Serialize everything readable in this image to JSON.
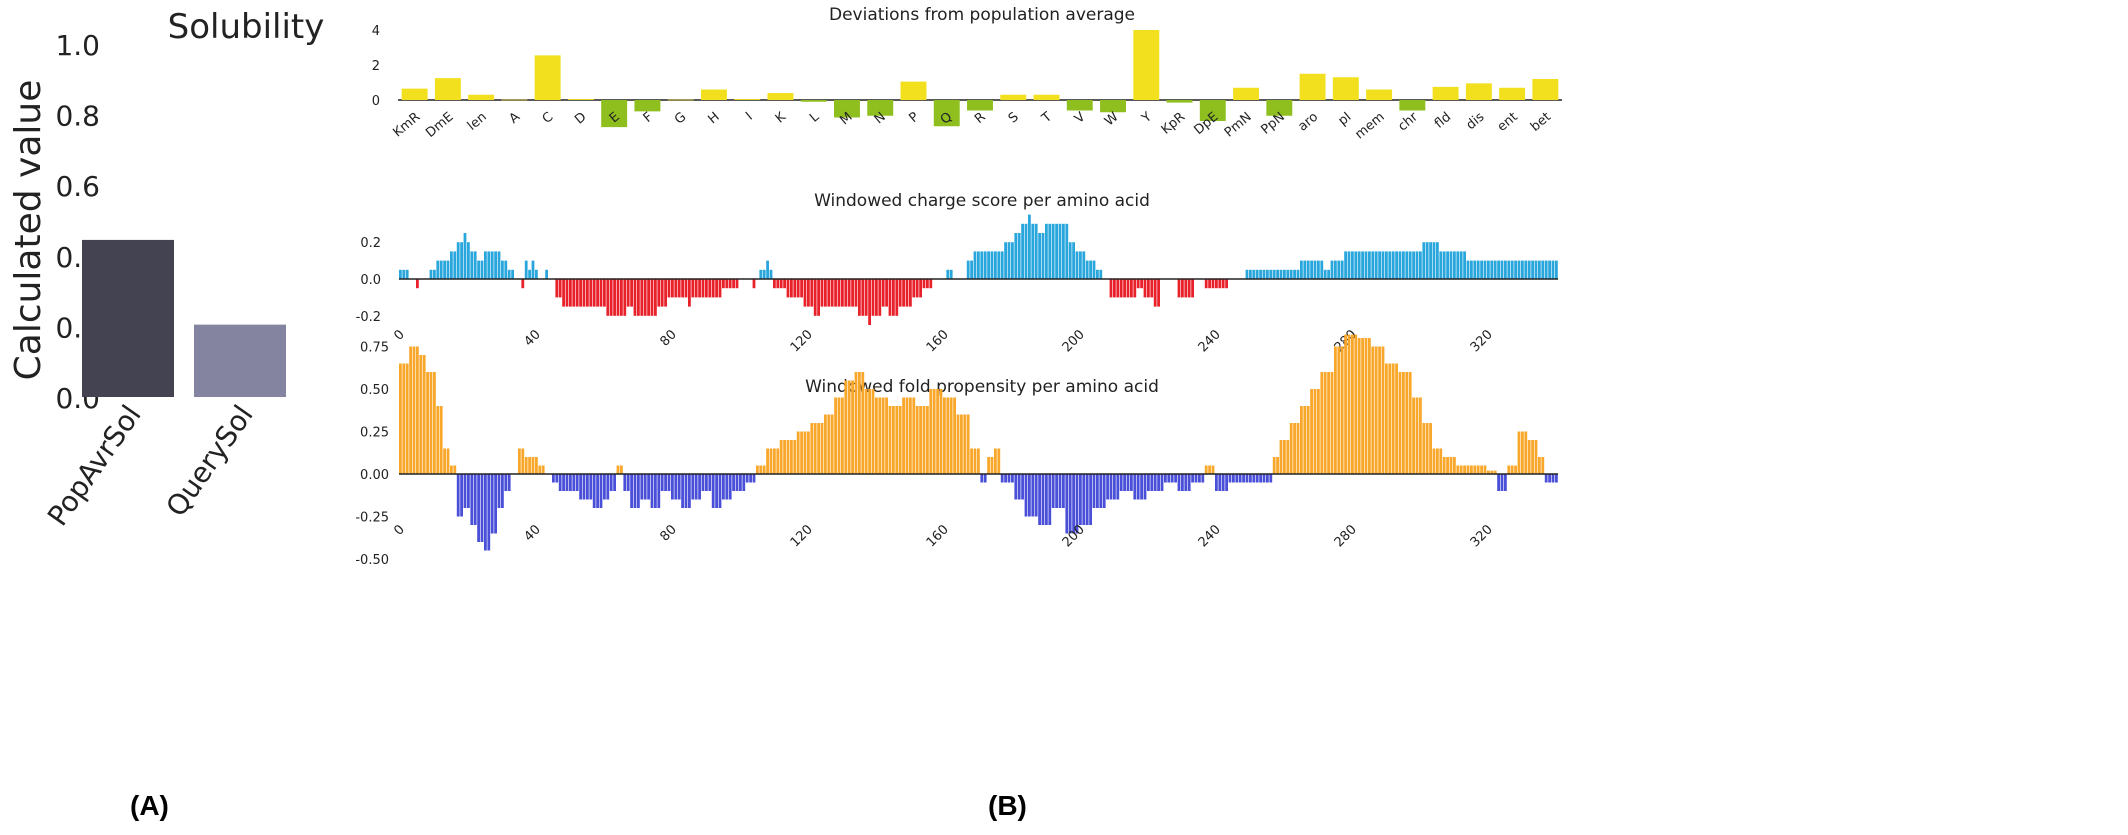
{
  "panel_labels": {
    "a": "(A)",
    "b": "(B)"
  },
  "chart_data": [
    {
      "type": "bar",
      "title": "Solubility",
      "ylabel": "Calculated value",
      "categories": [
        "PopAvrSol",
        "QuerySol"
      ],
      "values": [
        0.445,
        0.205
      ],
      "colors": [
        "#434351",
        "#8484a0"
      ],
      "ylim": [
        0,
        1.05
      ],
      "yticks": [
        "0.0",
        "0.2",
        "0.4",
        "0.6",
        "0.8",
        "1.0"
      ]
    },
    {
      "type": "bar",
      "title": "Deviations from population average",
      "categories": [
        "KmR",
        "DmE",
        "len",
        "A",
        "C",
        "D",
        "E",
        "F",
        "G",
        "H",
        "I",
        "K",
        "L",
        "M",
        "N",
        "P",
        "Q",
        "R",
        "S",
        "T",
        "V",
        "W",
        "Y",
        "KpR",
        "DpE",
        "PmN",
        "PpN",
        "aro",
        "pI",
        "mem",
        "chr",
        "fld",
        "dis",
        "ent",
        "bet"
      ],
      "values": [
        0.65,
        1.25,
        0.3,
        0.02,
        2.55,
        0.05,
        -1.55,
        -0.65,
        0.02,
        0.6,
        0.05,
        0.4,
        -0.1,
        -1.0,
        -0.9,
        1.05,
        -1.5,
        -0.6,
        0.3,
        0.3,
        -0.6,
        -0.7,
        4.0,
        -0.15,
        -1.2,
        0.7,
        -0.9,
        1.5,
        1.3,
        0.6,
        -0.6,
        0.75,
        0.95,
        0.7,
        1.2
      ],
      "pos_color": "#f2e01e",
      "neg_color": "#8fbf1f",
      "ylim": [
        -1.6,
        4.2
      ],
      "yticks": [
        "0",
        "2",
        "4"
      ]
    },
    {
      "type": "bar",
      "title": "Windowed charge score per amino acid",
      "xlim": [
        0,
        340
      ],
      "xticks": [
        "0",
        "40",
        "80",
        "120",
        "160",
        "200",
        "240",
        "280",
        "320"
      ],
      "yticks": [
        "0.2",
        "0.0",
        "-0.2"
      ],
      "ylim": [
        -0.25,
        0.34
      ],
      "pos_color": "#29a6dc",
      "neg_color": "#e8202a",
      "segments": [
        [
          0,
          2,
          0.05
        ],
        [
          3,
          4,
          0.0
        ],
        [
          5,
          5,
          -0.05
        ],
        [
          6,
          8,
          0.0
        ],
        [
          9,
          10,
          0.05
        ],
        [
          11,
          14,
          0.1
        ],
        [
          15,
          16,
          0.15
        ],
        [
          17,
          18,
          0.2
        ],
        [
          19,
          19,
          0.25
        ],
        [
          20,
          20,
          0.2
        ],
        [
          21,
          22,
          0.15
        ],
        [
          23,
          24,
          0.1
        ],
        [
          25,
          26,
          0.15
        ],
        [
          27,
          29,
          0.15
        ],
        [
          30,
          31,
          0.1
        ],
        [
          32,
          33,
          0.05
        ],
        [
          34,
          35,
          0.0
        ],
        [
          36,
          36,
          -0.05
        ],
        [
          37,
          37,
          0.1
        ],
        [
          38,
          38,
          0.05
        ],
        [
          39,
          39,
          0.1
        ],
        [
          40,
          40,
          0.05
        ],
        [
          41,
          42,
          0.0
        ],
        [
          43,
          43,
          0.05
        ],
        [
          44,
          45,
          0.0
        ],
        [
          46,
          47,
          -0.1
        ],
        [
          48,
          55,
          -0.15
        ],
        [
          56,
          60,
          -0.15
        ],
        [
          61,
          66,
          -0.2
        ],
        [
          67,
          68,
          -0.15
        ],
        [
          69,
          75,
          -0.2
        ],
        [
          76,
          78,
          -0.15
        ],
        [
          79,
          84,
          -0.1
        ],
        [
          85,
          85,
          -0.15
        ],
        [
          86,
          94,
          -0.1
        ],
        [
          95,
          99,
          -0.05
        ],
        [
          100,
          103,
          0.0
        ],
        [
          104,
          104,
          -0.05
        ],
        [
          105,
          105,
          0.0
        ],
        [
          106,
          107,
          0.05
        ],
        [
          108,
          108,
          0.1
        ],
        [
          109,
          109,
          0.05
        ],
        [
          110,
          113,
          -0.05
        ],
        [
          114,
          118,
          -0.1
        ],
        [
          119,
          121,
          -0.15
        ],
        [
          122,
          123,
          -0.2
        ],
        [
          124,
          126,
          -0.15
        ],
        [
          127,
          134,
          -0.15
        ],
        [
          135,
          137,
          -0.2
        ],
        [
          138,
          138,
          -0.25
        ],
        [
          139,
          141,
          -0.2
        ],
        [
          142,
          143,
          -0.15
        ],
        [
          144,
          146,
          -0.2
        ],
        [
          147,
          150,
          -0.15
        ],
        [
          151,
          153,
          -0.1
        ],
        [
          154,
          156,
          -0.05
        ],
        [
          157,
          160,
          0.0
        ],
        [
          161,
          162,
          0.05
        ],
        [
          163,
          166,
          0.0
        ],
        [
          167,
          168,
          0.1
        ],
        [
          169,
          170,
          0.15
        ],
        [
          171,
          172,
          0.15
        ],
        [
          173,
          177,
          0.15
        ],
        [
          178,
          180,
          0.2
        ],
        [
          181,
          182,
          0.25
        ],
        [
          183,
          184,
          0.3
        ],
        [
          185,
          185,
          0.35
        ],
        [
          186,
          187,
          0.3
        ],
        [
          188,
          189,
          0.25
        ],
        [
          190,
          196,
          0.3
        ],
        [
          197,
          198,
          0.2
        ],
        [
          199,
          201,
          0.15
        ],
        [
          202,
          204,
          0.1
        ],
        [
          205,
          206,
          0.05
        ],
        [
          207,
          208,
          0.0
        ],
        [
          209,
          216,
          -0.1
        ],
        [
          217,
          218,
          -0.05
        ],
        [
          219,
          221,
          -0.1
        ],
        [
          222,
          223,
          -0.15
        ],
        [
          224,
          228,
          0.0
        ],
        [
          229,
          233,
          -0.1
        ],
        [
          234,
          236,
          0.0
        ],
        [
          237,
          238,
          -0.05
        ],
        [
          239,
          243,
          -0.05
        ],
        [
          244,
          248,
          0.0
        ],
        [
          249,
          252,
          0.05
        ],
        [
          253,
          264,
          0.05
        ],
        [
          265,
          267,
          0.1
        ],
        [
          268,
          271,
          0.1
        ],
        [
          272,
          273,
          0.05
        ],
        [
          274,
          277,
          0.1
        ],
        [
          278,
          300,
          0.15
        ],
        [
          301,
          305,
          0.2
        ],
        [
          306,
          313,
          0.15
        ],
        [
          314,
          340,
          0.1
        ]
      ]
    },
    {
      "type": "bar",
      "title": "Windowed fold propensity per amino acid",
      "xlim": [
        0,
        340
      ],
      "xticks": [
        "0",
        "40",
        "80",
        "120",
        "160",
        "200",
        "240",
        "280",
        "320"
      ],
      "yticks": [
        "0.75",
        "0.50",
        "0.25",
        "0.00",
        "-0.25",
        "-0.50"
      ],
      "ylim": [
        -0.55,
        0.88
      ],
      "pos_color": "#f9a72b",
      "neg_color": "#4a4fd8",
      "segments": [
        [
          0,
          2,
          0.65
        ],
        [
          3,
          5,
          0.75
        ],
        [
          6,
          7,
          0.7
        ],
        [
          8,
          10,
          0.6
        ],
        [
          11,
          12,
          0.4
        ],
        [
          13,
          14,
          0.15
        ],
        [
          15,
          16,
          0.05
        ],
        [
          17,
          18,
          -0.25
        ],
        [
          19,
          20,
          -0.2
        ],
        [
          21,
          22,
          -0.3
        ],
        [
          23,
          24,
          -0.4
        ],
        [
          25,
          26,
          -0.45
        ],
        [
          27,
          28,
          -0.35
        ],
        [
          29,
          30,
          -0.2
        ],
        [
          31,
          32,
          -0.1
        ],
        [
          33,
          34,
          0.0
        ],
        [
          35,
          36,
          0.15
        ],
        [
          37,
          40,
          0.1
        ],
        [
          41,
          42,
          0.05
        ],
        [
          43,
          44,
          0.0
        ],
        [
          45,
          46,
          -0.05
        ],
        [
          47,
          52,
          -0.1
        ],
        [
          53,
          56,
          -0.15
        ],
        [
          57,
          59,
          -0.2
        ],
        [
          60,
          61,
          -0.15
        ],
        [
          62,
          63,
          -0.1
        ],
        [
          64,
          65,
          0.05
        ],
        [
          66,
          67,
          -0.1
        ],
        [
          68,
          70,
          -0.2
        ],
        [
          71,
          73,
          -0.15
        ],
        [
          74,
          76,
          -0.2
        ],
        [
          77,
          79,
          -0.1
        ],
        [
          80,
          82,
          -0.15
        ],
        [
          83,
          85,
          -0.2
        ],
        [
          86,
          88,
          -0.15
        ],
        [
          89,
          91,
          -0.1
        ],
        [
          92,
          94,
          -0.2
        ],
        [
          95,
          97,
          -0.15
        ],
        [
          98,
          101,
          -0.1
        ],
        [
          102,
          104,
          -0.05
        ],
        [
          105,
          107,
          0.05
        ],
        [
          108,
          111,
          0.15
        ],
        [
          112,
          116,
          0.2
        ],
        [
          117,
          120,
          0.25
        ],
        [
          121,
          124,
          0.3
        ],
        [
          125,
          127,
          0.35
        ],
        [
          128,
          130,
          0.45
        ],
        [
          131,
          133,
          0.55
        ],
        [
          134,
          136,
          0.6
        ],
        [
          137,
          139,
          0.5
        ],
        [
          140,
          143,
          0.45
        ],
        [
          144,
          147,
          0.4
        ],
        [
          148,
          151,
          0.45
        ],
        [
          152,
          155,
          0.4
        ],
        [
          156,
          159,
          0.5
        ],
        [
          160,
          163,
          0.45
        ],
        [
          164,
          167,
          0.35
        ],
        [
          168,
          170,
          0.15
        ],
        [
          171,
          172,
          -0.05
        ],
        [
          173,
          174,
          0.1
        ],
        [
          175,
          176,
          0.15
        ],
        [
          177,
          180,
          -0.05
        ],
        [
          181,
          183,
          -0.15
        ],
        [
          184,
          187,
          -0.25
        ],
        [
          188,
          191,
          -0.3
        ],
        [
          192,
          195,
          -0.2
        ],
        [
          196,
          199,
          -0.35
        ],
        [
          200,
          203,
          -0.3
        ],
        [
          204,
          207,
          -0.2
        ],
        [
          208,
          211,
          -0.15
        ],
        [
          212,
          215,
          -0.1
        ],
        [
          216,
          219,
          -0.15
        ],
        [
          220,
          224,
          -0.1
        ],
        [
          225,
          228,
          -0.05
        ],
        [
          229,
          232,
          -0.1
        ],
        [
          233,
          236,
          -0.05
        ],
        [
          237,
          239,
          0.05
        ],
        [
          240,
          243,
          -0.1
        ],
        [
          244,
          247,
          -0.05
        ],
        [
          248,
          251,
          -0.05
        ],
        [
          252,
          256,
          -0.05
        ],
        [
          257,
          258,
          0.1
        ],
        [
          259,
          261,
          0.2
        ],
        [
          262,
          264,
          0.3
        ],
        [
          265,
          267,
          0.4
        ],
        [
          268,
          270,
          0.5
        ],
        [
          271,
          274,
          0.6
        ],
        [
          275,
          277,
          0.75
        ],
        [
          278,
          281,
          0.82
        ],
        [
          282,
          285,
          0.8
        ],
        [
          286,
          289,
          0.75
        ],
        [
          290,
          293,
          0.65
        ],
        [
          294,
          297,
          0.6
        ],
        [
          298,
          300,
          0.45
        ],
        [
          301,
          303,
          0.3
        ],
        [
          304,
          306,
          0.15
        ],
        [
          307,
          310,
          0.1
        ],
        [
          311,
          314,
          0.05
        ],
        [
          315,
          319,
          0.05
        ],
        [
          320,
          322,
          0.02
        ],
        [
          323,
          325,
          -0.1
        ],
        [
          326,
          328,
          0.05
        ],
        [
          329,
          331,
          0.25
        ],
        [
          332,
          334,
          0.2
        ],
        [
          335,
          336,
          0.1
        ],
        [
          337,
          338,
          -0.05
        ],
        [
          339,
          340,
          -0.05
        ]
      ]
    }
  ]
}
